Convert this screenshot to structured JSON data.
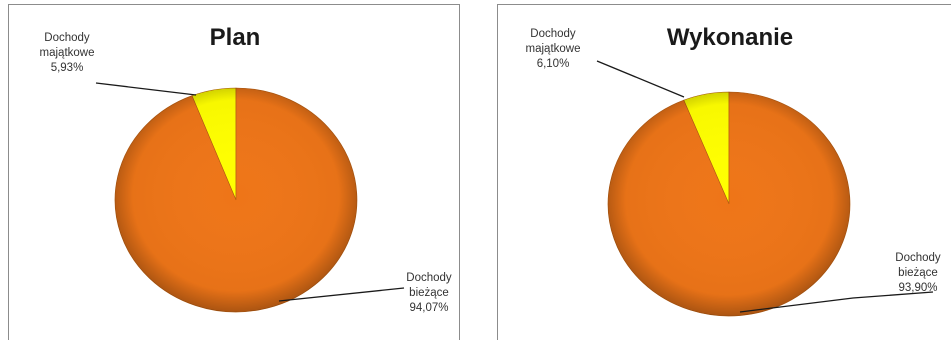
{
  "chart_data": [
    {
      "type": "pie",
      "title": "Plan",
      "slices": [
        {
          "label_lines": [
            "Dochody",
            "majątkowe",
            "5,93%"
          ],
          "value": 5.93,
          "color": "#ffff00"
        },
        {
          "label_lines": [
            "Dochody",
            "bieżące",
            "94,07%"
          ],
          "value": 94.07,
          "color": "#ee7518"
        }
      ]
    },
    {
      "type": "pie",
      "title": "Wykonanie",
      "slices": [
        {
          "label_lines": [
            "Dochody",
            "majątkowe",
            "6,10%"
          ],
          "value": 6.1,
          "color": "#ffff00"
        },
        {
          "label_lines": [
            "Dochody",
            "bieżące",
            "93,90%"
          ],
          "value": 93.9,
          "color": "#ee7518"
        }
      ]
    }
  ]
}
